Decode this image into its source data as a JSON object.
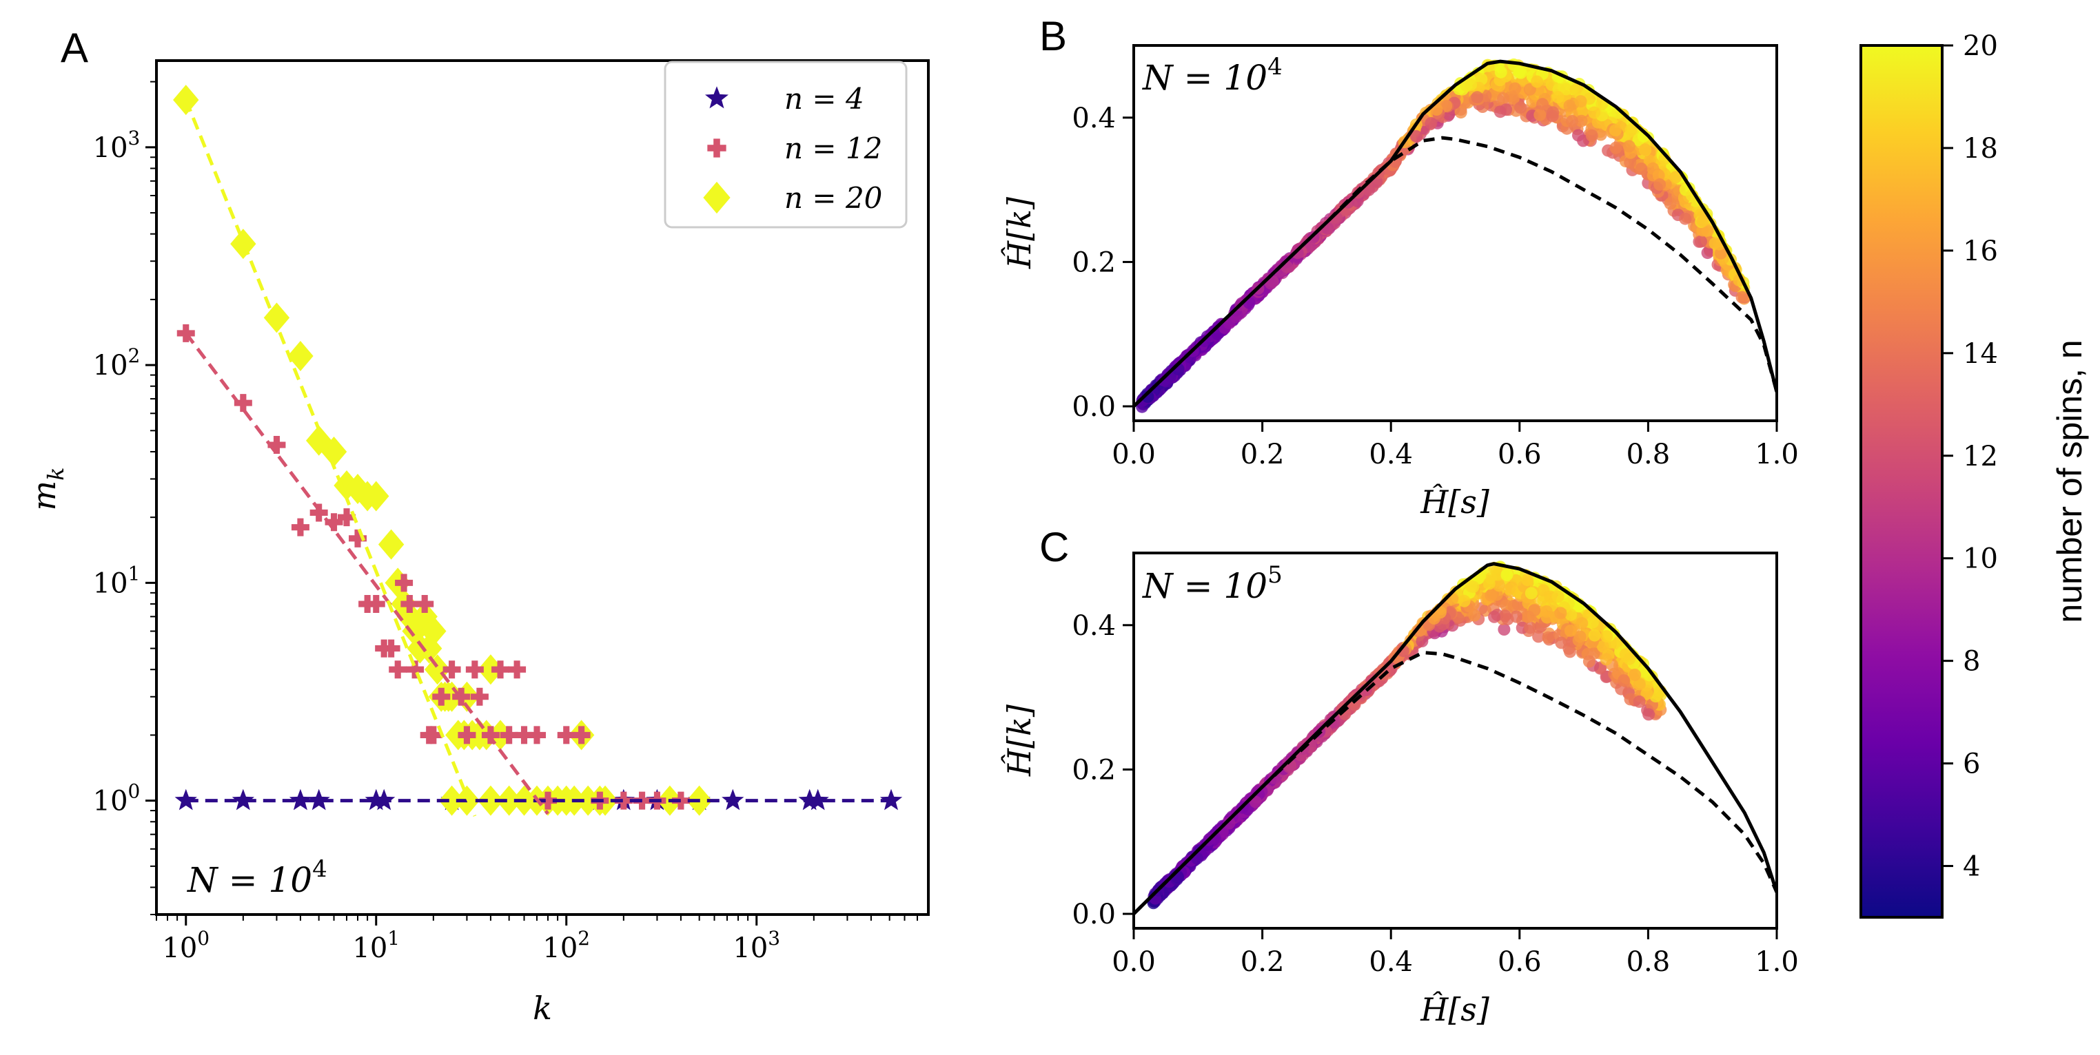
{
  "chart_data": [
    {
      "panel": "A",
      "type": "scatter",
      "xscale": "log",
      "yscale": "log",
      "xlim": [
        0.7,
        8000
      ],
      "ylim": [
        0.3,
        2500
      ],
      "xlabel": "k",
      "ylabel": "m",
      "ylabel_sub": "k",
      "xticks": [
        {
          "base": "10",
          "exp": "0",
          "value": 1
        },
        {
          "base": "10",
          "exp": "1",
          "value": 10
        },
        {
          "base": "10",
          "exp": "2",
          "value": 100
        },
        {
          "base": "10",
          "exp": "3",
          "value": 1000
        }
      ],
      "yticks": [
        {
          "base": "10",
          "exp": "0",
          "value": 1
        },
        {
          "base": "10",
          "exp": "1",
          "value": 10
        },
        {
          "base": "10",
          "exp": "2",
          "value": 100
        },
        {
          "base": "10",
          "exp": "3",
          "value": 1000
        }
      ],
      "annotation": {
        "text": "N = 10",
        "exp": "4"
      },
      "legend_position": "top-right",
      "series": [
        {
          "name": "n = 4",
          "legend_text": "n = 4",
          "marker": "star",
          "color": "#2d0a8a",
          "points": [
            [
              1,
              1
            ],
            [
              2,
              1
            ],
            [
              4,
              1
            ],
            [
              5,
              1
            ],
            [
              10,
              1
            ],
            [
              11,
              1
            ],
            [
              25,
              1
            ],
            [
              100,
              1
            ],
            [
              150,
              1
            ],
            [
              200,
              1
            ],
            [
              300,
              1
            ],
            [
              500,
              1
            ],
            [
              750,
              1
            ],
            [
              1900,
              1
            ],
            [
              2100,
              1
            ],
            [
              5100,
              1
            ]
          ],
          "fit": [
            [
              1,
              1
            ],
            [
              5100,
              1
            ]
          ]
        },
        {
          "name": "n = 12",
          "legend_text": "n = 12",
          "marker": "plus",
          "color": "#d5546e",
          "points": [
            [
              1,
              140
            ],
            [
              2,
              67
            ],
            [
              3,
              43
            ],
            [
              4,
              18
            ],
            [
              5,
              21
            ],
            [
              6,
              19
            ],
            [
              7,
              20
            ],
            [
              8,
              16
            ],
            [
              9,
              8
            ],
            [
              10,
              8
            ],
            [
              11,
              5
            ],
            [
              12,
              5
            ],
            [
              13,
              4
            ],
            [
              14,
              10
            ],
            [
              15,
              8
            ],
            [
              16,
              4
            ],
            [
              18,
              8
            ],
            [
              19,
              2
            ],
            [
              20,
              2
            ],
            [
              22,
              3
            ],
            [
              25,
              4
            ],
            [
              28,
              3
            ],
            [
              30,
              2
            ],
            [
              33,
              4
            ],
            [
              35,
              3
            ],
            [
              40,
              2
            ],
            [
              45,
              4
            ],
            [
              50,
              2
            ],
            [
              55,
              4
            ],
            [
              60,
              2
            ],
            [
              70,
              2
            ],
            [
              80,
              1
            ],
            [
              100,
              2
            ],
            [
              120,
              2
            ],
            [
              150,
              1
            ],
            [
              200,
              1
            ],
            [
              250,
              1
            ],
            [
              300,
              1
            ],
            [
              400,
              1
            ]
          ],
          "fit": [
            [
              1,
              140
            ],
            [
              80,
              0.87
            ]
          ]
        },
        {
          "name": "n = 20",
          "legend_text": "n = 20",
          "marker": "diamond",
          "color": "#f0f921",
          "points": [
            [
              1,
              1650
            ],
            [
              2,
              360
            ],
            [
              3,
              165
            ],
            [
              4,
              110
            ],
            [
              5,
              45
            ],
            [
              6,
              40
            ],
            [
              7,
              28
            ],
            [
              8,
              27
            ],
            [
              9,
              25
            ],
            [
              10,
              25
            ],
            [
              12,
              15
            ],
            [
              13,
              10
            ],
            [
              14,
              8
            ],
            [
              15,
              7
            ],
            [
              16,
              6
            ],
            [
              17,
              5
            ],
            [
              18,
              7
            ],
            [
              19,
              5
            ],
            [
              20,
              6
            ],
            [
              21,
              4
            ],
            [
              22,
              3
            ],
            [
              23,
              3
            ],
            [
              24,
              3
            ],
            [
              25,
              3
            ],
            [
              27,
              2
            ],
            [
              29,
              2
            ],
            [
              30,
              3
            ],
            [
              32,
              2
            ],
            [
              35,
              2
            ],
            [
              38,
              2
            ],
            [
              40,
              4
            ],
            [
              45,
              2
            ],
            [
              25,
              1
            ],
            [
              30,
              1
            ],
            [
              40,
              1
            ],
            [
              50,
              1
            ],
            [
              60,
              1
            ],
            [
              70,
              1
            ],
            [
              80,
              1
            ],
            [
              90,
              1
            ],
            [
              100,
              1
            ],
            [
              110,
              1
            ],
            [
              120,
              2
            ],
            [
              130,
              1
            ],
            [
              150,
              1
            ],
            [
              160,
              1
            ],
            [
              350,
              1
            ],
            [
              500,
              1
            ]
          ],
          "fit": [
            [
              1,
              1650
            ],
            [
              33,
              0.85
            ]
          ]
        }
      ]
    },
    {
      "panel": "B",
      "type": "scatter",
      "xlim": [
        0,
        1
      ],
      "ylim": [
        -0.02,
        0.5
      ],
      "xlabel": "Ĥ[s]",
      "ylabel": "Ĥ[k]",
      "xticks": [
        "0.0",
        "0.2",
        "0.4",
        "0.6",
        "0.8",
        "1.0"
      ],
      "yticks": [
        "0.0",
        "0.2",
        "0.4"
      ],
      "annotation": {
        "text": "N = 10",
        "exp": "4"
      },
      "upper_bound_curve": [
        [
          0,
          0
        ],
        [
          0.1,
          0.085
        ],
        [
          0.2,
          0.17
        ],
        [
          0.3,
          0.255
        ],
        [
          0.4,
          0.34
        ],
        [
          0.45,
          0.405
        ],
        [
          0.5,
          0.445
        ],
        [
          0.55,
          0.475
        ],
        [
          0.57,
          0.478
        ],
        [
          0.6,
          0.475
        ],
        [
          0.65,
          0.465
        ],
        [
          0.7,
          0.445
        ],
        [
          0.75,
          0.415
        ],
        [
          0.8,
          0.375
        ],
        [
          0.85,
          0.325
        ],
        [
          0.9,
          0.255
        ],
        [
          0.93,
          0.205
        ],
        [
          0.96,
          0.15
        ],
        [
          0.98,
          0.09
        ],
        [
          1,
          0.02
        ]
      ],
      "lower_bound_curve": [
        [
          0,
          0
        ],
        [
          0.1,
          0.085
        ],
        [
          0.2,
          0.17
        ],
        [
          0.3,
          0.255
        ],
        [
          0.35,
          0.3
        ],
        [
          0.4,
          0.34
        ],
        [
          0.45,
          0.368
        ],
        [
          0.48,
          0.372
        ],
        [
          0.5,
          0.37
        ],
        [
          0.55,
          0.36
        ],
        [
          0.6,
          0.345
        ],
        [
          0.65,
          0.325
        ],
        [
          0.7,
          0.3
        ],
        [
          0.75,
          0.275
        ],
        [
          0.8,
          0.245
        ],
        [
          0.85,
          0.21
        ],
        [
          0.9,
          0.17
        ],
        [
          0.93,
          0.145
        ],
        [
          0.96,
          0.12
        ],
        [
          0.98,
          0.085
        ],
        [
          1,
          0.02
        ]
      ],
      "point_cloud": {
        "x_range": [
          0.01,
          0.95
        ],
        "color_by": "number of spins, n",
        "n_range": [
          3,
          20
        ]
      }
    },
    {
      "panel": "C",
      "type": "scatter",
      "xlim": [
        0,
        1
      ],
      "ylim": [
        -0.02,
        0.5
      ],
      "xlabel": "Ĥ[s]",
      "ylabel": "Ĥ[k]",
      "xticks": [
        "0.0",
        "0.2",
        "0.4",
        "0.6",
        "0.8",
        "1.0"
      ],
      "yticks": [
        "0.0",
        "0.2",
        "0.4"
      ],
      "annotation": {
        "text": "N = 10",
        "exp": "5"
      },
      "upper_bound_curve": [
        [
          0,
          0
        ],
        [
          0.1,
          0.088
        ],
        [
          0.2,
          0.176
        ],
        [
          0.3,
          0.264
        ],
        [
          0.4,
          0.35
        ],
        [
          0.45,
          0.405
        ],
        [
          0.5,
          0.45
        ],
        [
          0.55,
          0.483
        ],
        [
          0.56,
          0.485
        ],
        [
          0.6,
          0.478
        ],
        [
          0.65,
          0.46
        ],
        [
          0.7,
          0.43
        ],
        [
          0.75,
          0.39
        ],
        [
          0.8,
          0.34
        ],
        [
          0.85,
          0.28
        ],
        [
          0.9,
          0.21
        ],
        [
          0.95,
          0.14
        ],
        [
          0.98,
          0.085
        ],
        [
          1,
          0.03
        ]
      ],
      "lower_bound_curve": [
        [
          0,
          0
        ],
        [
          0.1,
          0.088
        ],
        [
          0.2,
          0.176
        ],
        [
          0.3,
          0.26
        ],
        [
          0.35,
          0.3
        ],
        [
          0.4,
          0.34
        ],
        [
          0.45,
          0.362
        ],
        [
          0.48,
          0.36
        ],
        [
          0.5,
          0.355
        ],
        [
          0.55,
          0.34
        ],
        [
          0.6,
          0.32
        ],
        [
          0.65,
          0.298
        ],
        [
          0.7,
          0.275
        ],
        [
          0.75,
          0.25
        ],
        [
          0.8,
          0.22
        ],
        [
          0.85,
          0.19
        ],
        [
          0.9,
          0.155
        ],
        [
          0.95,
          0.11
        ],
        [
          0.98,
          0.07
        ],
        [
          1,
          0.03
        ]
      ],
      "point_cloud": {
        "x_range": [
          0.03,
          0.82
        ],
        "color_by": "number of spins, n",
        "n_range": [
          3,
          20
        ]
      }
    },
    {
      "panel": "colorbar",
      "type": "colorbar",
      "label": "number of spins, n",
      "range": [
        3,
        20
      ],
      "ticks": [
        "4",
        "6",
        "8",
        "10",
        "12",
        "14",
        "16",
        "18",
        "20"
      ],
      "colormap": [
        "#0d0887",
        "#3d049b",
        "#6a00a8",
        "#8f0da4",
        "#b12a90",
        "#cc4778",
        "#e16462",
        "#f2844b",
        "#fca636",
        "#fcce25",
        "#f0f921"
      ]
    }
  ],
  "panel_labels": {
    "a": "A",
    "b": "B",
    "c": "C"
  }
}
